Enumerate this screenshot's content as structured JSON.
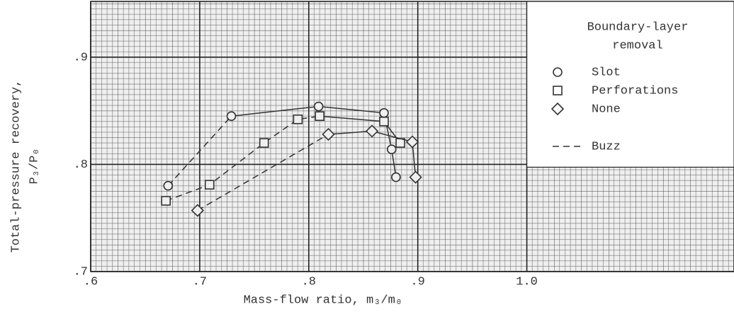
{
  "chart_data": {
    "type": "scatter",
    "xlabel": "Mass-flow ratio, m₃/m₀",
    "ylabel": [
      "Total-pressure recovery,",
      "P₃/P₀"
    ],
    "xlim": [
      0.6,
      1.19
    ],
    "ylim": [
      0.7,
      0.952
    ],
    "xticks": [
      {
        "value": 0.6,
        "label": ".6"
      },
      {
        "value": 0.7,
        "label": ".7"
      },
      {
        "value": 0.8,
        "label": ".8"
      },
      {
        "value": 0.9,
        "label": ".9"
      },
      {
        "value": 1.0,
        "label": "1.0"
      }
    ],
    "yticks": [
      {
        "value": 0.7,
        "label": ".7"
      },
      {
        "value": 0.8,
        "label": ".8"
      },
      {
        "value": 0.9,
        "label": ".9"
      }
    ],
    "grid": true,
    "legend_title": [
      "Boundary-layer",
      "removal"
    ],
    "legend_position": "upper right",
    "dashed_label": "Buzz",
    "series": [
      {
        "name": "Slot",
        "marker": "circle",
        "color": "#333333",
        "dashed_until": 1,
        "x": [
          0.671,
          0.729,
          0.809,
          0.869,
          0.876,
          0.88
        ],
        "values": [
          0.78,
          0.845,
          0.854,
          0.848,
          0.814,
          0.788
        ]
      },
      {
        "name": "Perforations",
        "marker": "square",
        "color": "#333333",
        "dashed_until": 4,
        "x": [
          0.669,
          0.709,
          0.759,
          0.79,
          0.81,
          0.869,
          0.884
        ],
        "values": [
          0.766,
          0.781,
          0.82,
          0.842,
          0.845,
          0.84,
          0.82
        ]
      },
      {
        "name": "None",
        "marker": "diamond",
        "color": "#333333",
        "dashed_until": 1,
        "x": [
          0.698,
          0.818,
          0.858,
          0.895,
          0.898
        ],
        "values": [
          0.757,
          0.828,
          0.831,
          0.821,
          0.788
        ]
      }
    ]
  }
}
